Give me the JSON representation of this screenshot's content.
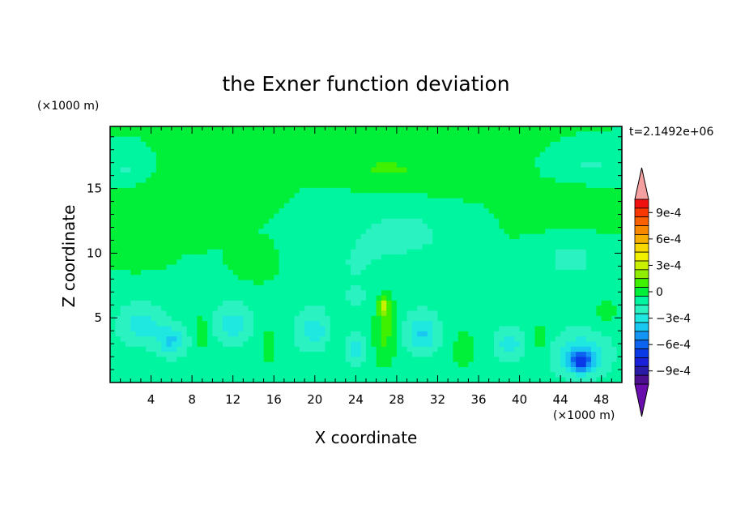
{
  "chart_data": {
    "type": "heatmap",
    "title": "the Exner function deviation",
    "time_label": "t=2.1492e+06",
    "xlabel": "X coordinate",
    "ylabel": "Z coordinate",
    "x_unit": "(×1000 m)",
    "y_unit": "(×1000 m)",
    "xlim": [
      0,
      50
    ],
    "ylim": [
      0,
      19.8
    ],
    "x_ticks": [
      4,
      8,
      12,
      16,
      20,
      24,
      28,
      32,
      36,
      40,
      44,
      48
    ],
    "y_ticks": [
      5,
      10,
      15
    ],
    "colorbar": {
      "levels": [
        -0.0011,
        -0.001,
        -0.0009,
        -0.0008,
        -0.0007,
        -0.0006,
        -0.0005,
        -0.0004,
        -0.0003,
        -0.0002,
        -0.0001,
        0,
        0.0001,
        0.0002,
        0.0003,
        0.0004,
        0.0005,
        0.0006,
        0.0007,
        0.0008,
        0.0009,
        0.001,
        0.0011
      ],
      "colors": [
        "#6a0dad",
        "#4b0f8f",
        "#2a1aa8",
        "#1a1fd8",
        "#0a3ae8",
        "#0b63f0",
        "#1495f5",
        "#18c8f0",
        "#1ee8e0",
        "#2af2c0",
        "#00f5a0",
        "#00f03a",
        "#3ff000",
        "#90ec00",
        "#c8f000",
        "#f0f000",
        "#f7d800",
        "#f8b000",
        "#f88800",
        "#f86000",
        "#f83800",
        "#f01010",
        "#f4a0a0"
      ],
      "labels": [
        "9e-4",
        "6e-4",
        "3e-4",
        "0",
        "−3e-4",
        "−6e-4",
        "−9e-4"
      ],
      "label_values": [
        0.0009,
        0.0006,
        0.0003,
        0,
        -0.0003,
        -0.0006,
        -0.0009
      ]
    },
    "field": {
      "base": -5e-05,
      "regions": [
        {
          "kind": "band",
          "z": [
            0,
            7.2
          ],
          "value": -0.00015
        },
        {
          "x": 3,
          "z": 4.5,
          "rx": 2.5,
          "rz": 1.8,
          "value": -0.0002
        },
        {
          "x": 6,
          "z": 3.2,
          "rx": 1.8,
          "rz": 1.4,
          "value": -0.00025
        },
        {
          "x": 12,
          "z": 4.5,
          "rx": 2.2,
          "rz": 1.8,
          "value": -0.0002
        },
        {
          "x": 20,
          "z": 4.0,
          "rx": 2.2,
          "rz": 1.8,
          "value": -0.0002
        },
        {
          "x": 24,
          "z": 2.5,
          "rx": 1.2,
          "rz": 1.2,
          "value": -0.00025
        },
        {
          "x": 30.5,
          "z": 3.8,
          "rx": 2.0,
          "rz": 1.8,
          "value": -0.00025
        },
        {
          "x": 39,
          "z": 3.0,
          "rx": 1.6,
          "rz": 1.5,
          "value": -0.0002
        },
        {
          "x": 46,
          "z": 2.2,
          "rx": 3.2,
          "rz": 2.0,
          "value": -0.00025
        },
        {
          "x": 46,
          "z": 1.6,
          "rx": 1.4,
          "rz": 0.9,
          "value": -0.00045
        },
        {
          "x": 9,
          "z": 4.0,
          "rx": 1.0,
          "rz": 2.5,
          "value": 0.0001
        },
        {
          "x": 15.5,
          "z": 2.8,
          "rx": 1.3,
          "rz": 2.6,
          "value": 0.0001
        },
        {
          "x": 22,
          "z": 3.5,
          "rx": 1.3,
          "rz": 2.8,
          "value": 0.0001
        },
        {
          "x": 26.8,
          "z": 4.0,
          "rx": 1.5,
          "rz": 3.4,
          "value": 0.0002
        },
        {
          "x": 26.8,
          "z": 6.0,
          "rx": 0.8,
          "rz": 1.0,
          "value": 0.0003
        },
        {
          "x": 34.5,
          "z": 2.5,
          "rx": 1.8,
          "rz": 2.5,
          "value": 0.0001
        },
        {
          "x": 42,
          "z": 3.5,
          "rx": 1.3,
          "rz": 2.0,
          "value": 0.0001
        },
        {
          "x": 48.5,
          "z": 5.5,
          "rx": 1.5,
          "rz": 1.2,
          "value": 0.0001
        },
        {
          "x": 2.5,
          "z": 10.8,
          "rx": 2.2,
          "rz": 1.4,
          "value": 0.0001
        },
        {
          "x": 14.5,
          "z": 9.2,
          "rx": 1.6,
          "rz": 1.3,
          "value": 0.0001
        },
        {
          "x": 24,
          "z": 9.0,
          "rx": 5.5,
          "rz": 4.2,
          "value": -0.0001
        },
        {
          "x": 29,
          "z": 11.5,
          "rx": 5.0,
          "rz": 2.2,
          "value": -0.00015
        },
        {
          "x": 45,
          "z": 9.5,
          "rx": 3.5,
          "rz": 1.8,
          "value": -0.00015
        },
        {
          "x": 30,
          "z": 16.5,
          "rx": 8.0,
          "rz": 2.5,
          "value": 2e-05
        },
        {
          "x": 22,
          "z": 18.5,
          "rx": 8.0,
          "rz": 1.5,
          "value": 3e-05
        },
        {
          "x": 27,
          "z": 16.5,
          "rx": 5.5,
          "rz": 1.1,
          "value": 0.0001
        },
        {
          "x": 1.5,
          "z": 16.5,
          "rx": 1.8,
          "rz": 1.0,
          "value": -0.00012
        },
        {
          "x": 47,
          "z": 16.8,
          "rx": 3.0,
          "rz": 1.0,
          "value": -0.00012
        },
        {
          "x": 45,
          "z": 13.0,
          "rx": 5.0,
          "rz": 2.0,
          "value": 2e-05
        },
        {
          "x": 8,
          "z": 14.5,
          "rx": 7.0,
          "rz": 2.0,
          "value": 2e-05
        }
      ]
    }
  }
}
